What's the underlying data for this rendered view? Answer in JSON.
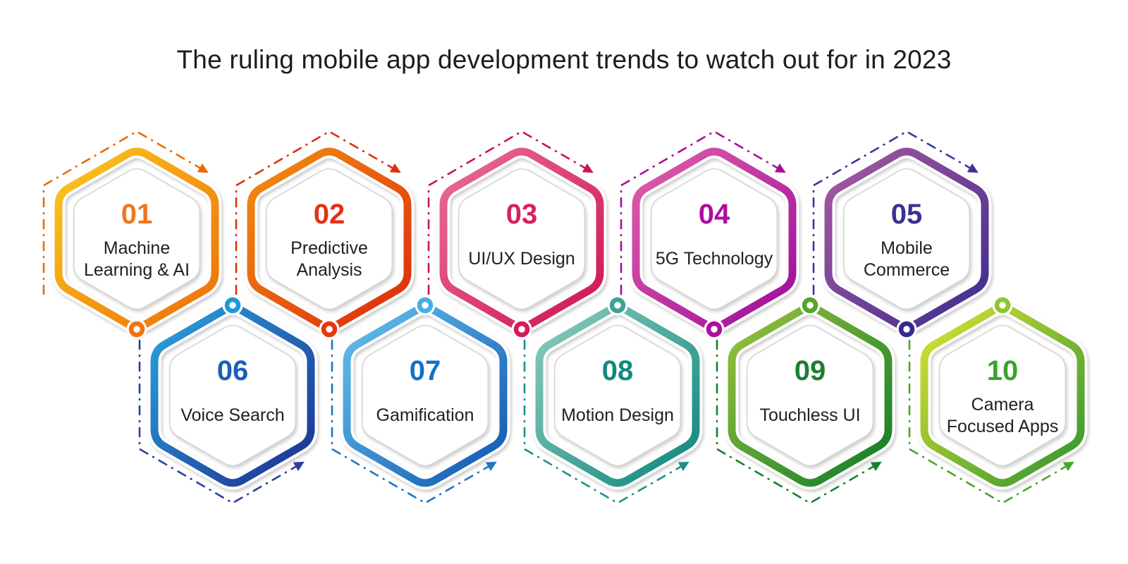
{
  "title": "The ruling mobile app development trends to watch out for in 2023",
  "cards": [
    {
      "number": "01",
      "label": "Machine\nLearning & AI",
      "row": "top",
      "grad_start": "#f9c91f",
      "grad_end": "#ee6e0a",
      "number_color": "#f0761c",
      "dash_color": "#eb6a06",
      "ring_color": "#f0730c"
    },
    {
      "number": "02",
      "label": "Predictive\nAnalysis",
      "row": "top",
      "grad_start": "#f29110",
      "grad_end": "#dc280e",
      "number_color": "#e23114",
      "dash_color": "#df2f0e",
      "ring_color": "#e6380f"
    },
    {
      "number": "03",
      "label": "UI/UX Design",
      "row": "top",
      "grad_start": "#e97096",
      "grad_end": "#ce1254",
      "number_color": "#d6215f",
      "dash_color": "#cb1356",
      "ring_color": "#d41a5c"
    },
    {
      "number": "04",
      "label": "5G Technology",
      "row": "top",
      "grad_start": "#e160a9",
      "grad_end": "#9c0b9b",
      "number_color": "#ae0e9f",
      "dash_color": "#a90d9a",
      "ring_color": "#b00d9e"
    },
    {
      "number": "05",
      "label": "Mobile\nCommerce",
      "row": "top",
      "grad_start": "#a95a9f",
      "grad_end": "#3c2c90",
      "number_color": "#3b3191",
      "dash_color": "#3e3496",
      "ring_color": "#352a8e"
    },
    {
      "number": "06",
      "label": "Voice Search",
      "row": "bottom",
      "grad_start": "#2aa4de",
      "grad_end": "#1c2e90",
      "number_color": "#1a5eb8",
      "dash_color": "#2a3e9e",
      "ring_color": "#1d97d6"
    },
    {
      "number": "07",
      "label": "Gamification",
      "row": "bottom",
      "grad_start": "#67c3ec",
      "grad_end": "#0e55b1",
      "number_color": "#1470c8",
      "dash_color": "#2173c3",
      "ring_color": "#45aee4"
    },
    {
      "number": "08",
      "label": "Motion Design",
      "row": "bottom",
      "grad_start": "#8fccbe",
      "grad_end": "#0b867c",
      "number_color": "#12897f",
      "dash_color": "#1c9087",
      "ring_color": "#3da295"
    },
    {
      "number": "09",
      "label": "Touchless UI",
      "row": "bottom",
      "grad_start": "#9cc43d",
      "grad_end": "#0c7a29",
      "number_color": "#1f7e33",
      "dash_color": "#15802f",
      "ring_color": "#53a62a"
    },
    {
      "number": "10",
      "label": "Camera\nFocused Apps",
      "row": "bottom",
      "grad_start": "#dce334",
      "grad_end": "#2f9330",
      "number_color": "#3aa32d",
      "dash_color": "#49a52a",
      "ring_color": "#8cc62f"
    }
  ]
}
